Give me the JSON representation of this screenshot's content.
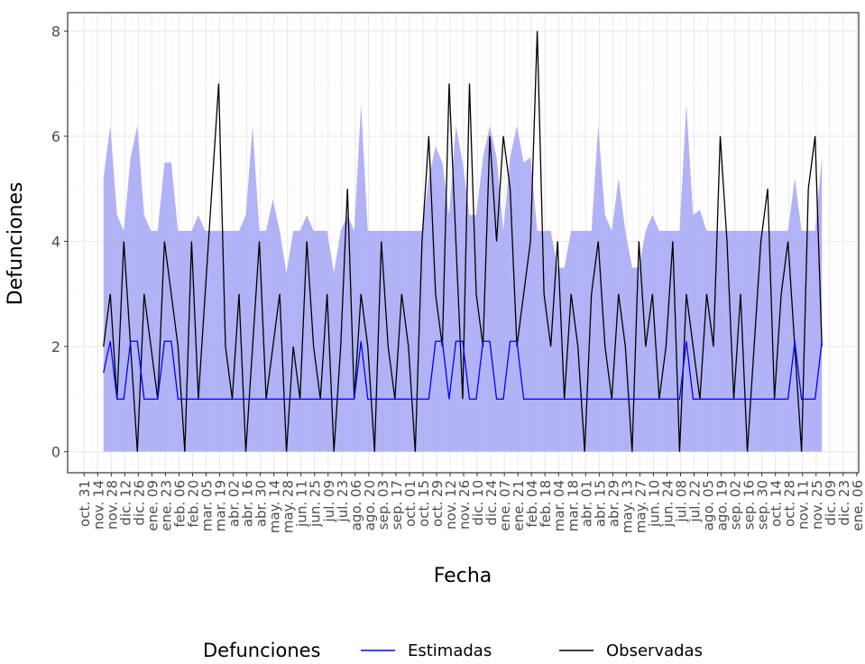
{
  "chart_data": {
    "type": "line",
    "x_label": "Fecha",
    "y_label": "Defunciones",
    "legend_title": "Defunciones",
    "grid": true,
    "legend_position": "bottom",
    "xlim": [
      -17,
      800
    ],
    "ylim": [
      -0.4,
      8.35
    ],
    "yticks": [
      0,
      2,
      4,
      6,
      8
    ],
    "xticks": [
      {
        "value": 0,
        "label": "oct. 31"
      },
      {
        "value": 14,
        "label": "nov. 14"
      },
      {
        "value": 28,
        "label": "nov. 28"
      },
      {
        "value": 42,
        "label": "dic. 12"
      },
      {
        "value": 56,
        "label": "dic. 26"
      },
      {
        "value": 70,
        "label": "ene. 09"
      },
      {
        "value": 84,
        "label": "ene. 23"
      },
      {
        "value": 98,
        "label": "feb. 06"
      },
      {
        "value": 112,
        "label": "feb. 20"
      },
      {
        "value": 126,
        "label": "mar. 05"
      },
      {
        "value": 140,
        "label": "mar. 19"
      },
      {
        "value": 154,
        "label": "abr. 02"
      },
      {
        "value": 168,
        "label": "abr. 16"
      },
      {
        "value": 182,
        "label": "abr. 30"
      },
      {
        "value": 196,
        "label": "may. 14"
      },
      {
        "value": 210,
        "label": "may. 28"
      },
      {
        "value": 224,
        "label": "jun. 11"
      },
      {
        "value": 238,
        "label": "jun. 25"
      },
      {
        "value": 252,
        "label": "jul. 09"
      },
      {
        "value": 266,
        "label": "jul. 23"
      },
      {
        "value": 280,
        "label": "ago. 06"
      },
      {
        "value": 294,
        "label": "ago. 20"
      },
      {
        "value": 308,
        "label": "sep. 03"
      },
      {
        "value": 322,
        "label": "sep. 17"
      },
      {
        "value": 336,
        "label": "oct. 01"
      },
      {
        "value": 350,
        "label": "oct. 15"
      },
      {
        "value": 364,
        "label": "oct. 29"
      },
      {
        "value": 378,
        "label": "nov. 12"
      },
      {
        "value": 392,
        "label": "nov. 26"
      },
      {
        "value": 406,
        "label": "dic. 10"
      },
      {
        "value": 420,
        "label": "dic. 24"
      },
      {
        "value": 434,
        "label": "ene. 07"
      },
      {
        "value": 448,
        "label": "ene. 21"
      },
      {
        "value": 462,
        "label": "feb. 04"
      },
      {
        "value": 476,
        "label": "feb. 18"
      },
      {
        "value": 490,
        "label": "mar. 04"
      },
      {
        "value": 504,
        "label": "mar. 18"
      },
      {
        "value": 518,
        "label": "abr. 01"
      },
      {
        "value": 532,
        "label": "abr. 15"
      },
      {
        "value": 546,
        "label": "abr. 29"
      },
      {
        "value": 560,
        "label": "may. 13"
      },
      {
        "value": 574,
        "label": "may. 27"
      },
      {
        "value": 588,
        "label": "jun. 10"
      },
      {
        "value": 602,
        "label": "jun. 24"
      },
      {
        "value": 616,
        "label": "jul. 08"
      },
      {
        "value": 630,
        "label": "jul. 22"
      },
      {
        "value": 644,
        "label": "ago. 05"
      },
      {
        "value": 658,
        "label": "ago. 19"
      },
      {
        "value": 672,
        "label": "sep. 02"
      },
      {
        "value": 686,
        "label": "sep. 16"
      },
      {
        "value": 700,
        "label": "sep. 30"
      },
      {
        "value": 714,
        "label": "oct. 14"
      },
      {
        "value": 728,
        "label": "oct. 28"
      },
      {
        "value": 742,
        "label": "nov. 11"
      },
      {
        "value": 756,
        "label": "nov. 25"
      },
      {
        "value": 770,
        "label": "dic. 09"
      },
      {
        "value": 784,
        "label": "dic. 23"
      },
      {
        "value": 798,
        "label": "ene. 06"
      }
    ],
    "x": [
      20,
      27,
      34,
      41,
      48,
      55,
      62,
      69,
      76,
      83,
      90,
      97,
      104,
      111,
      118,
      125,
      132,
      139,
      146,
      153,
      160,
      167,
      174,
      181,
      188,
      195,
      202,
      209,
      216,
      223,
      230,
      237,
      244,
      251,
      258,
      265,
      272,
      279,
      286,
      293,
      300,
      307,
      314,
      321,
      328,
      335,
      342,
      349,
      356,
      363,
      370,
      377,
      384,
      391,
      398,
      405,
      412,
      419,
      426,
      433,
      440,
      447,
      454,
      461,
      468,
      475,
      482,
      489,
      496,
      503,
      510,
      517,
      524,
      531,
      538,
      545,
      552,
      559,
      566,
      573,
      580,
      587,
      594,
      601,
      608,
      615,
      622,
      629,
      636,
      643,
      650,
      657,
      664,
      671,
      678,
      685,
      692,
      699,
      706,
      713,
      720,
      727,
      734,
      741,
      748,
      755,
      762
    ],
    "band": {
      "color": "#aaaaf5",
      "lower": [
        0,
        0,
        0,
        0,
        0,
        0,
        0,
        0,
        0,
        0,
        0,
        0,
        0,
        0,
        0,
        0,
        0,
        0,
        0,
        0,
        0,
        0,
        0,
        0,
        0,
        0,
        0,
        0,
        0,
        0,
        0,
        0,
        0,
        0,
        0,
        0,
        0,
        0,
        0,
        0,
        0,
        0,
        0,
        0,
        0,
        0,
        0,
        0,
        0,
        0,
        0,
        0,
        0,
        0,
        0,
        0,
        0,
        0,
        0,
        0,
        0,
        0,
        0,
        0,
        0,
        0,
        0,
        0,
        0,
        0,
        0,
        0,
        0,
        0,
        0,
        0,
        0,
        0,
        0,
        0,
        0,
        0,
        0,
        0,
        0,
        0,
        0,
        0,
        0,
        0,
        0,
        0,
        0,
        0,
        0,
        0,
        0,
        0,
        0,
        0,
        0,
        0,
        0,
        0,
        0,
        0,
        0
      ],
      "upper": [
        5.2,
        6.2,
        4.5,
        4.2,
        5.6,
        6.2,
        4.5,
        4.2,
        4.2,
        5.5,
        5.5,
        4.2,
        4.2,
        4.2,
        4.5,
        4.2,
        4.2,
        4.2,
        4.2,
        4.2,
        4.2,
        4.5,
        6.2,
        4.2,
        4.2,
        4.8,
        4.2,
        3.4,
        4.2,
        4.2,
        4.5,
        4.2,
        4.2,
        4.2,
        3.4,
        4.2,
        4.5,
        4.2,
        6.6,
        4.2,
        4.2,
        4.2,
        4.2,
        4.2,
        4.2,
        4.2,
        4.2,
        4.2,
        5.2,
        5.8,
        5.5,
        4.5,
        6.2,
        5.5,
        4.5,
        4.5,
        5.6,
        6.2,
        5.6,
        4.2,
        5.6,
        6.2,
        5.5,
        5.6,
        4.2,
        4.2,
        4.2,
        3.5,
        3.5,
        4.2,
        4.2,
        4.2,
        4.2,
        6.2,
        4.5,
        4.2,
        5.2,
        4.2,
        3.5,
        3.5,
        4.2,
        4.5,
        4.2,
        4.2,
        4.2,
        4.2,
        6.6,
        4.5,
        4.6,
        4.2,
        4.2,
        4.2,
        4.2,
        4.2,
        4.2,
        4.2,
        4.2,
        4.2,
        4.2,
        4.2,
        4.2,
        4.2,
        5.2,
        4.2,
        4.2,
        4.2,
        5.6
      ]
    },
    "series": [
      {
        "name": "Estimadas",
        "color": "#0000ff",
        "values": [
          1.5,
          2.1,
          1,
          1,
          2.1,
          2.1,
          1,
          1,
          1,
          2.1,
          2.1,
          1,
          1,
          1,
          1,
          1,
          1,
          1,
          1,
          1,
          1,
          1,
          1,
          1,
          1,
          1,
          1,
          1,
          1,
          1,
          1,
          1,
          1,
          1,
          1,
          1,
          1,
          1,
          2.1,
          1,
          1,
          1,
          1,
          1,
          1,
          1,
          1,
          1,
          1,
          2.1,
          2.1,
          1,
          2.1,
          2.1,
          1,
          1,
          2.1,
          2.1,
          1,
          1,
          2.1,
          2.1,
          1,
          1,
          1,
          1,
          1,
          1,
          1,
          1,
          1,
          1,
          1,
          1,
          1,
          1,
          1,
          1,
          1,
          1,
          1,
          1,
          1,
          1,
          1,
          1,
          2.1,
          1,
          1,
          1,
          1,
          1,
          1,
          1,
          1,
          1,
          1,
          1,
          1,
          1,
          1,
          1,
          2.1,
          1,
          1,
          1,
          2.1
        ]
      },
      {
        "name": "Observadas",
        "color": "#000000",
        "values": [
          2,
          3,
          1,
          4,
          2,
          0,
          3,
          2,
          1,
          4,
          3,
          2,
          0,
          4,
          1,
          3,
          5,
          7,
          2,
          1,
          3,
          0,
          2,
          4,
          1,
          2,
          3,
          0,
          2,
          1,
          4,
          2,
          1,
          3,
          0,
          2,
          5,
          1,
          3,
          2,
          0,
          4,
          2,
          1,
          3,
          2,
          0,
          4,
          6,
          3,
          2,
          7,
          4,
          1,
          7,
          3,
          2,
          6,
          4,
          6,
          5,
          2,
          3,
          4,
          8,
          3,
          2,
          4,
          1,
          3,
          2,
          0,
          3,
          4,
          2,
          1,
          3,
          2,
          0,
          4,
          2,
          3,
          1,
          2,
          4,
          0,
          3,
          2,
          1,
          3,
          2,
          6,
          4,
          1,
          3,
          0,
          2,
          4,
          5,
          1,
          3,
          4,
          2,
          0,
          5,
          6,
          2
        ]
      }
    ]
  }
}
